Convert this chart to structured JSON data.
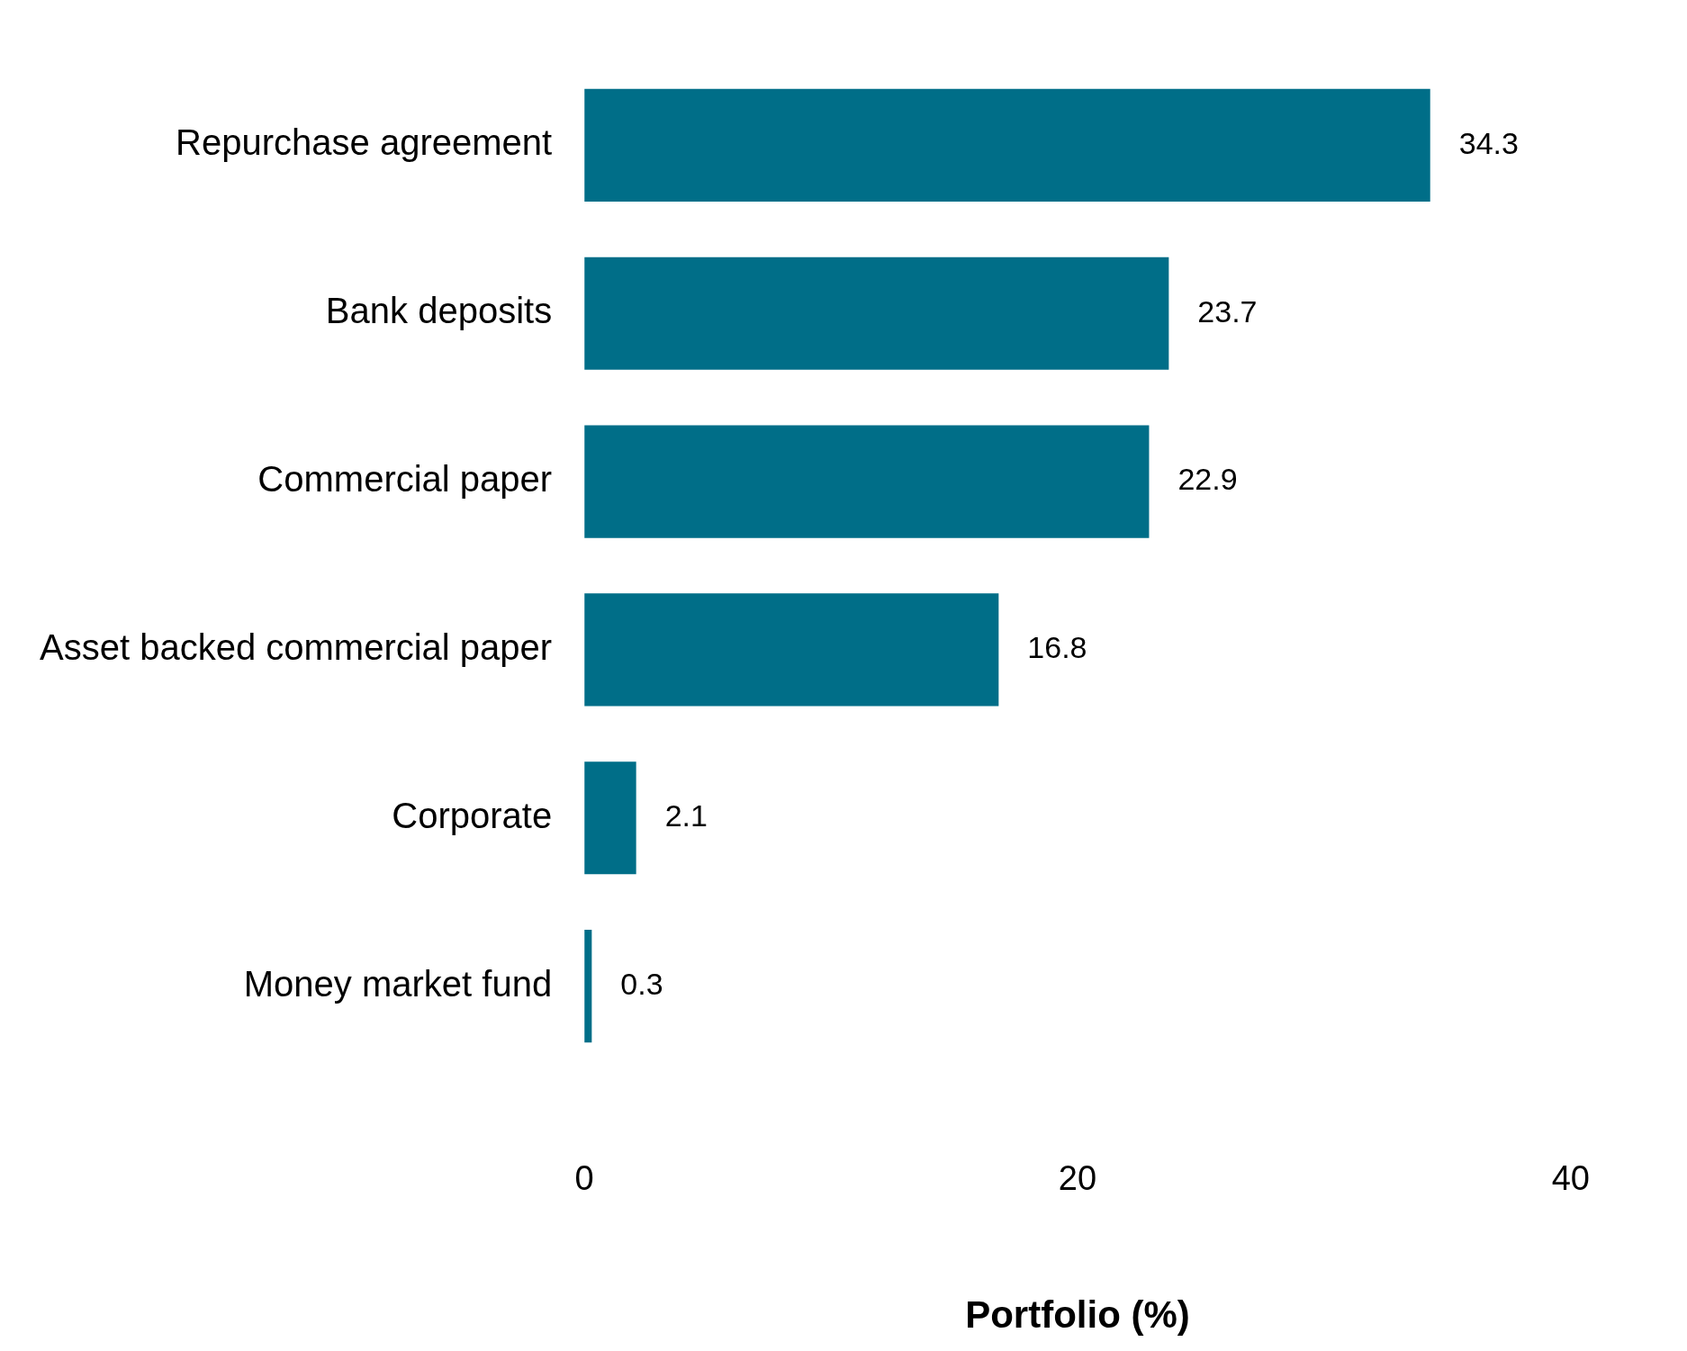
{
  "chart_data": {
    "type": "bar",
    "orientation": "horizontal",
    "xlabel": "Portfolio (%)",
    "categories": [
      "Repurchase agreement",
      "Bank deposits",
      "Commercial paper",
      "Asset backed commercial paper",
      "Corporate",
      "Money market fund"
    ],
    "values": [
      34.3,
      23.7,
      22.9,
      16.8,
      2.1,
      0.3
    ],
    "color": "#006e88",
    "xlim": [
      0,
      40
    ],
    "xticks": [
      0,
      20,
      40
    ],
    "grid": false,
    "legend": false,
    "data_labels": true
  }
}
